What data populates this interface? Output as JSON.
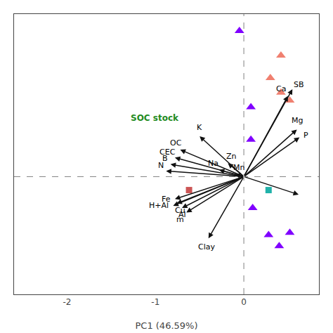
{
  "chart_data": {
    "type": "biplot",
    "xlabel": "PC1 (46.59%)",
    "xlim": [
      -2.6,
      0.85
    ],
    "ylim": [
      -1.05,
      1.45
    ],
    "xticks": [
      -2,
      -1,
      0
    ],
    "tick_labels": "x",
    "grid": false,
    "crosshair": {
      "x": 0.0,
      "y": 0.0
    },
    "arrow_origin": {
      "x": 0,
      "y": 0
    },
    "arrow_color": "#111111",
    "arrows": [
      {
        "name": "Ca",
        "x": 0.5,
        "y": 0.72,
        "label_x": 0.42,
        "label_y": 0.78
      },
      {
        "name": "SB",
        "x": 0.55,
        "y": 0.78,
        "label_x": 0.62,
        "label_y": 0.82
      },
      {
        "name": "Mg",
        "x": 0.6,
        "y": 0.42,
        "label_x": 0.6,
        "label_y": 0.5
      },
      {
        "name": "P",
        "x": 0.63,
        "y": 0.35,
        "label_x": 0.7,
        "label_y": 0.37
      },
      {
        "name": "K",
        "x": -0.5,
        "y": 0.36,
        "label_x": -0.5,
        "label_y": 0.44
      },
      {
        "name": "Na",
        "x": -0.28,
        "y": 0.06,
        "label_x": -0.35,
        "label_y": 0.12
      },
      {
        "name": "Zn",
        "x": -0.18,
        "y": 0.12,
        "label_x": -0.14,
        "label_y": 0.18
      },
      {
        "name": "Mn",
        "x": -0.1,
        "y": 0.02,
        "label_x": -0.06,
        "label_y": 0.08
      },
      {
        "name": "OC",
        "x": -0.72,
        "y": 0.24,
        "label_x": -0.77,
        "label_y": 0.3
      },
      {
        "name": "CEC",
        "x": -0.78,
        "y": 0.17,
        "label_x": -0.86,
        "label_y": 0.22
      },
      {
        "name": "B",
        "x": -0.83,
        "y": 0.11,
        "label_x": -0.89,
        "label_y": 0.16
      },
      {
        "name": "N",
        "x": -0.88,
        "y": 0.05,
        "label_x": -0.94,
        "label_y": 0.1
      },
      {
        "name": "Fe",
        "x": -0.78,
        "y": -0.2,
        "label_x": -0.88,
        "label_y": -0.2
      },
      {
        "name": "Cu",
        "x": -0.76,
        "y": -0.24,
        "label_x": -0.72,
        "label_y": -0.3
      },
      {
        "name": "H+Al",
        "x": -0.8,
        "y": -0.26,
        "label_x": -0.96,
        "label_y": -0.26
      },
      {
        "name": "Al",
        "x": -0.7,
        "y": -0.28,
        "label_x": -0.7,
        "label_y": -0.34
      },
      {
        "name": "m",
        "x": -0.65,
        "y": -0.32,
        "label_x": -0.72,
        "label_y": -0.38
      },
      {
        "name": "Clay",
        "x": -0.4,
        "y": -0.55,
        "label_x": -0.42,
        "label_y": -0.63
      },
      {
        "x": 0.62,
        "y": -0.16
      }
    ],
    "annotations": [
      {
        "text": "SOC stock",
        "x": -1.3,
        "y": 0.52,
        "color": "#228B22"
      }
    ],
    "series": [
      {
        "type": "scatter",
        "marker": "triangle",
        "color": "#8000FF",
        "x": [
          -0.05,
          0.08,
          0.08,
          0.1,
          0.28,
          0.4,
          0.52
        ],
        "y": [
          1.3,
          0.62,
          0.33,
          -0.28,
          -0.52,
          -0.62,
          -0.5
        ]
      },
      {
        "type": "scatter",
        "marker": "triangle",
        "color": "#F08070",
        "x": [
          0.42,
          0.3,
          0.42,
          0.52
        ],
        "y": [
          1.08,
          0.88,
          0.75,
          0.68
        ]
      },
      {
        "type": "scatter",
        "marker": "square",
        "color": "#CC5555",
        "x": [
          -0.62
        ],
        "y": [
          -0.12
        ]
      },
      {
        "type": "scatter",
        "marker": "square",
        "color": "#20B2AA",
        "x": [
          0.28
        ],
        "y": [
          -0.12
        ]
      }
    ]
  }
}
